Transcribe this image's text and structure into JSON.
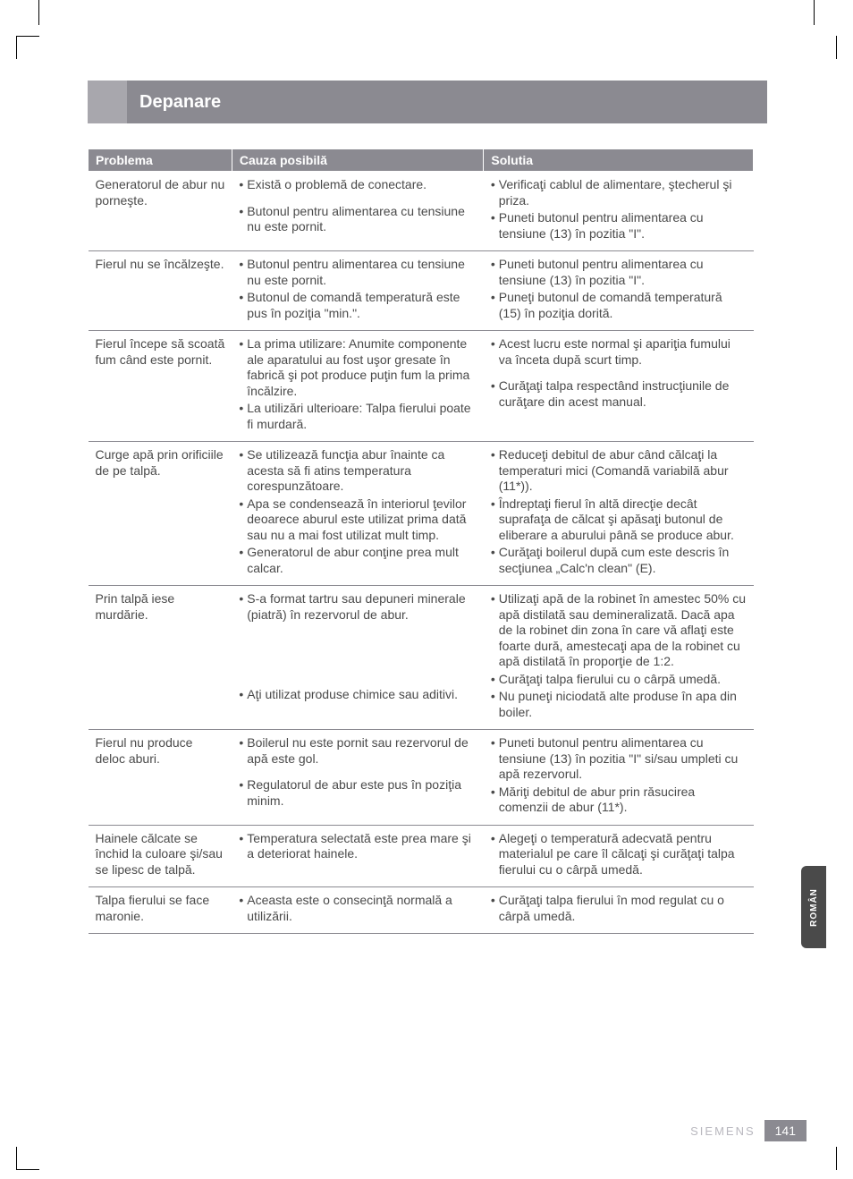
{
  "title": "Depanare",
  "lang_tab": "ROMÂN",
  "footer_brand": "SIEMENS",
  "page_number": "141",
  "headers": [
    "Problema",
    "Cauza posibilă",
    "Solutia"
  ],
  "rows": [
    {
      "problem": "Generatorul de abur nu porneşte.",
      "causes": [
        "Există o problemă de conectare.",
        "Butonul pentru alimentarea cu tensiune nu este pornit."
      ],
      "cause_gaps": [
        0
      ],
      "solutions": [
        "Verificaţi cablul de alimentare, ştecherul şi priza.",
        "Puneti butonul pentru alimentarea cu tensiune (13) în pozitia \"I\"."
      ]
    },
    {
      "problem": "Fierul nu se încălzeşte.",
      "causes": [
        "Butonul pentru alimentarea cu tensiune nu este pornit.",
        "Butonul de comandă temperatură este pus în poziţia \"min.\"."
      ],
      "solutions": [
        "Puneti butonul pentru alimentarea cu tensiune (13) în pozitia \"I\".",
        "Puneţi butonul de comandă temperatură (15) în poziţia dorită."
      ]
    },
    {
      "problem": "Fierul începe să scoată fum când este pornit.",
      "causes": [
        "La prima utilizare: Anumite componente ale aparatului au fost uşor gresate în fabrică şi pot produce puţin fum la prima încălzire.",
        "La utilizări ulterioare: Talpa fierului poate fi murdară."
      ],
      "solutions": [
        "Acest lucru este normal şi apariţia fumului va înceta după scurt timp.",
        "Curăţaţi talpa respectând instrucţiunile de curăţare din acest manual."
      ],
      "solution_gaps": [
        0
      ]
    },
    {
      "problem": "Curge apă prin orificiile de pe talpă.",
      "causes": [
        "Se utilizează funcţia abur înainte ca acesta să fi atins temperatura corespunzătoare.",
        "Apa se condensează în interiorul ţevilor deoarece aburul este utilizat prima dată sau nu a mai fost utilizat mult timp.",
        "Generatorul de abur conţine prea mult calcar."
      ],
      "solutions": [
        "Reduceţi debitul de abur când călcaţi la temperaturi mici (Comandă variabilă abur (11*)).",
        "Îndreptaţi fierul în altă direcţie decât suprafaţa de călcat şi apăsaţi butonul de eliberare a aburului până se produce abur.",
        "Curăţaţi boilerul după cum este descris în secţiunea „Calc'n clean\" (E)."
      ]
    },
    {
      "problem": "Prin talpă iese murdărie.",
      "causes": [
        "S-a format tartru sau depuneri minerale (piatră) în rezervorul de abur.",
        "Aţi utilizat produse chimice sau aditivi."
      ],
      "cause_gaps_large": [
        0
      ],
      "solutions": [
        "Utilizaţi apă de la robinet în amestec 50% cu apă distilată sau demineralizată. Dacă apa de la robinet din zona în care vă aflaţi este foarte dură, amestecaţi apa de la robinet cu apă distilată în proporţie de 1:2.",
        "Curăţaţi talpa fierului cu o cârpă umedă.",
        "Nu puneţi niciodată alte produse în apa din boiler."
      ]
    },
    {
      "problem": "Fierul nu produce deloc aburi.",
      "causes": [
        "Boilerul nu este pornit sau rezervorul de apă este gol.",
        "Regulatorul de abur este pus în poziţia minim."
      ],
      "cause_gaps": [
        0
      ],
      "solutions": [
        "Puneti butonul pentru alimentarea cu tensiune (13) în pozitia \"I\" si/sau umpleti cu apă rezervorul.",
        "Măriţi debitul de abur prin răsucirea comenzii de abur (11*)."
      ]
    },
    {
      "problem": "Hainele călcate se închid la culoare şi/sau se lipesc de talpă.",
      "causes": [
        "Temperatura selectată este prea mare şi a deteriorat hainele."
      ],
      "solutions": [
        "Alegeţi o temperatură adecvată pentru materialul pe care îl călcaţi şi curăţaţi talpa fierului cu o cârpă umedă."
      ]
    },
    {
      "problem": "Talpa fierului se face maronie.",
      "causes": [
        "Aceasta este o consecinţă normală a utilizării."
      ],
      "solutions": [
        "Curăţaţi talpa fierului în mod regulat cu o cârpă umedă."
      ]
    }
  ]
}
